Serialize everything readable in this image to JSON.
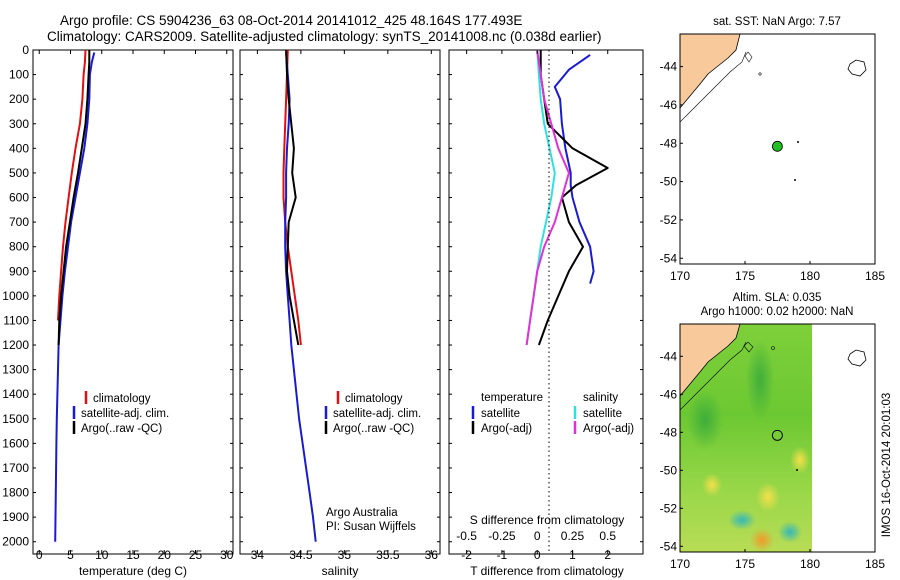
{
  "header": {
    "line1": "Argo profile: CS 5904236_63 08-Oct-2014 20141012_425 48.164S 177.493E",
    "line2": "Climatology: CARS2009. Satellite-adjusted climatology: synTS_20141008.nc (0.038d earlier)"
  },
  "colors": {
    "climatology": "#e01010",
    "satellite": "#1a1ad0",
    "argo": "#000000",
    "salinity_sat": "#30e0e0",
    "salinity_argo": "#e030d8",
    "land": "#f8c99b",
    "sst_ocean": "#ffffff"
  },
  "chart_data": [
    {
      "id": "temperature",
      "type": "line",
      "xlabel": "temperature (deg C)",
      "xlim": [
        -1,
        31
      ],
      "ylim": [
        2050,
        0
      ],
      "xticks": [
        0,
        5,
        10,
        15,
        20,
        25,
        30
      ],
      "yticks": [
        0,
        100,
        200,
        300,
        400,
        500,
        600,
        700,
        800,
        900,
        1000,
        1100,
        1200,
        1300,
        1400,
        1500,
        1600,
        1700,
        1800,
        1900,
        2000
      ],
      "legend": [
        "climatology",
        "satellite-adj. clim.",
        "Argo(..raw -QC)"
      ],
      "series": [
        {
          "key": "climatology",
          "x": [
            7.4,
            7.3,
            7.1,
            6.9,
            6.5,
            5.8,
            5.2,
            4.7,
            4.2,
            3.8,
            3.5,
            3.2,
            3.0
          ],
          "y": [
            0,
            50,
            100,
            200,
            300,
            400,
            500,
            600,
            700,
            800,
            900,
            1000,
            1100
          ]
        },
        {
          "key": "satellite",
          "x": [
            8.8,
            8.4,
            8.1,
            8.0,
            7.7,
            7.2,
            6.5,
            5.8,
            5.1,
            4.6,
            4.1,
            3.7,
            3.4,
            3.1,
            3.0,
            2.9,
            2.8,
            2.75,
            2.7,
            2.65,
            2.6,
            2.55
          ],
          "y": [
            10,
            50,
            100,
            200,
            300,
            400,
            500,
            600,
            700,
            800,
            900,
            1000,
            1100,
            1200,
            1300,
            1400,
            1500,
            1600,
            1700,
            1800,
            1900,
            2000
          ]
        },
        {
          "key": "argo",
          "x": [
            8.0,
            8.0,
            7.9,
            7.7,
            7.4,
            6.8,
            6.2,
            5.5,
            4.9,
            4.3,
            3.9,
            3.5,
            3.2,
            3.1
          ],
          "y": [
            0,
            50,
            100,
            200,
            300,
            400,
            500,
            600,
            700,
            800,
            900,
            1000,
            1100,
            1200
          ]
        }
      ]
    },
    {
      "id": "salinity",
      "type": "line",
      "xlabel": "salinity",
      "xlim": [
        33.8,
        36.1
      ],
      "ylim": [
        2050,
        0
      ],
      "xticks": [
        34,
        34.5,
        35,
        35.5,
        36
      ],
      "legend": [
        "climatology",
        "satellite-adj. clim.",
        "Argo(..raw -QC)"
      ],
      "annotation": [
        "Argo Australia",
        "PI: Susan Wijffels"
      ],
      "series": [
        {
          "key": "climatology",
          "x": [
            34.35,
            34.34,
            34.33,
            34.32,
            34.31,
            34.3,
            34.3,
            34.32,
            34.35,
            34.39,
            34.43,
            34.47,
            34.5
          ],
          "y": [
            0,
            100,
            200,
            300,
            400,
            500,
            600,
            700,
            800,
            900,
            1000,
            1100,
            1200
          ]
        },
        {
          "key": "satellite",
          "x": [
            34.33,
            34.35,
            34.37,
            34.36,
            34.34,
            34.33,
            34.33,
            34.32,
            34.32,
            34.33,
            34.35,
            34.37,
            34.39,
            34.42,
            34.45,
            34.48,
            34.52,
            34.56,
            34.6,
            34.64,
            34.67
          ],
          "y": [
            10,
            100,
            200,
            300,
            400,
            500,
            600,
            700,
            800,
            900,
            1000,
            1100,
            1200,
            1300,
            1400,
            1500,
            1600,
            1700,
            1800,
            1900,
            2000
          ]
        },
        {
          "key": "argo",
          "x": [
            34.33,
            34.34,
            34.36,
            34.39,
            34.42,
            34.4,
            34.44,
            34.36,
            34.35,
            34.34,
            34.37,
            34.42,
            34.47
          ],
          "y": [
            0,
            100,
            200,
            300,
            400,
            500,
            600,
            700,
            800,
            900,
            1000,
            1100,
            1200
          ]
        }
      ]
    },
    {
      "id": "difference",
      "type": "line",
      "xlabel": "T difference from climatology",
      "xlabel_top": "S difference from climatology",
      "xlim": [
        -2.5,
        3
      ],
      "ylim": [
        2050,
        0
      ],
      "xticks": [
        -2,
        -1,
        0,
        1,
        2
      ],
      "xticks_s_labels": [
        "-0.5",
        "-0.25",
        "0",
        "0.25",
        "0.5"
      ],
      "legend_title_t": "temperature",
      "legend_title_s": "salinity",
      "legend": [
        "satellite",
        "Argo(-adj)",
        "satellite",
        "Argo(-adj)"
      ],
      "series": [
        {
          "key": "satellite",
          "x": [
            1.5,
            0.9,
            0.5,
            0.65,
            0.7,
            0.8,
            0.95,
            0.95,
            1.0,
            1.2,
            1.5,
            1.6,
            1.5
          ],
          "y": [
            20,
            80,
            150,
            200,
            300,
            400,
            500,
            550,
            600,
            700,
            800,
            900,
            950
          ]
        },
        {
          "key": "argo",
          "x": [
            0.1,
            0.1,
            0.2,
            0.3,
            1.0,
            2.0,
            1.1,
            0.7,
            0.9,
            1.3,
            0.9,
            0.6,
            0.3,
            0.05
          ],
          "y": [
            0,
            100,
            200,
            300,
            400,
            480,
            550,
            600,
            700,
            800,
            900,
            1000,
            1100,
            1200
          ]
        },
        {
          "key": "salinity_sat",
          "x": [
            0,
            0.05,
            0.1,
            0.2,
            0.35,
            0.5,
            0.4,
            0.25,
            0.1,
            0,
            -0.1,
            -0.2,
            -0.3
          ],
          "y": [
            0,
            100,
            200,
            300,
            400,
            500,
            600,
            700,
            800,
            900,
            1000,
            1100,
            1200
          ]
        },
        {
          "key": "salinity_argo",
          "x": [
            0,
            0.1,
            0.2,
            0.4,
            0.6,
            0.9,
            0.7,
            0.5,
            0.2,
            0,
            -0.1,
            -0.2,
            -0.3
          ],
          "y": [
            0,
            100,
            200,
            300,
            400,
            500,
            600,
            700,
            800,
            900,
            1000,
            1100,
            1200
          ]
        }
      ]
    },
    {
      "id": "sst_map",
      "type": "map",
      "title": "sat. SST: NaN Argo: 7.57",
      "xlim": [
        170,
        185
      ],
      "ylim": [
        -54.3,
        -42.3
      ],
      "xticks": [
        170,
        175,
        180,
        185
      ],
      "yticks": [
        -44,
        -46,
        -48,
        -50,
        -52,
        -54
      ],
      "profile_point": [
        177.49,
        -48.16
      ]
    },
    {
      "id": "sla_map",
      "type": "map",
      "title_line1": "Altim. SLA: 0.035",
      "title_line2": "Argo h1000: 0.02 h2000: NaN",
      "xlim": [
        170,
        185
      ],
      "ylim": [
        -54.3,
        -42.3
      ],
      "xticks": [
        170,
        175,
        180,
        185
      ],
      "yticks": [
        -44,
        -46,
        -48,
        -50,
        -52,
        -54
      ],
      "profile_point": [
        177.49,
        -48.16
      ]
    }
  ],
  "side_label": "IMOS 16-Oct-2014 20:01:03"
}
